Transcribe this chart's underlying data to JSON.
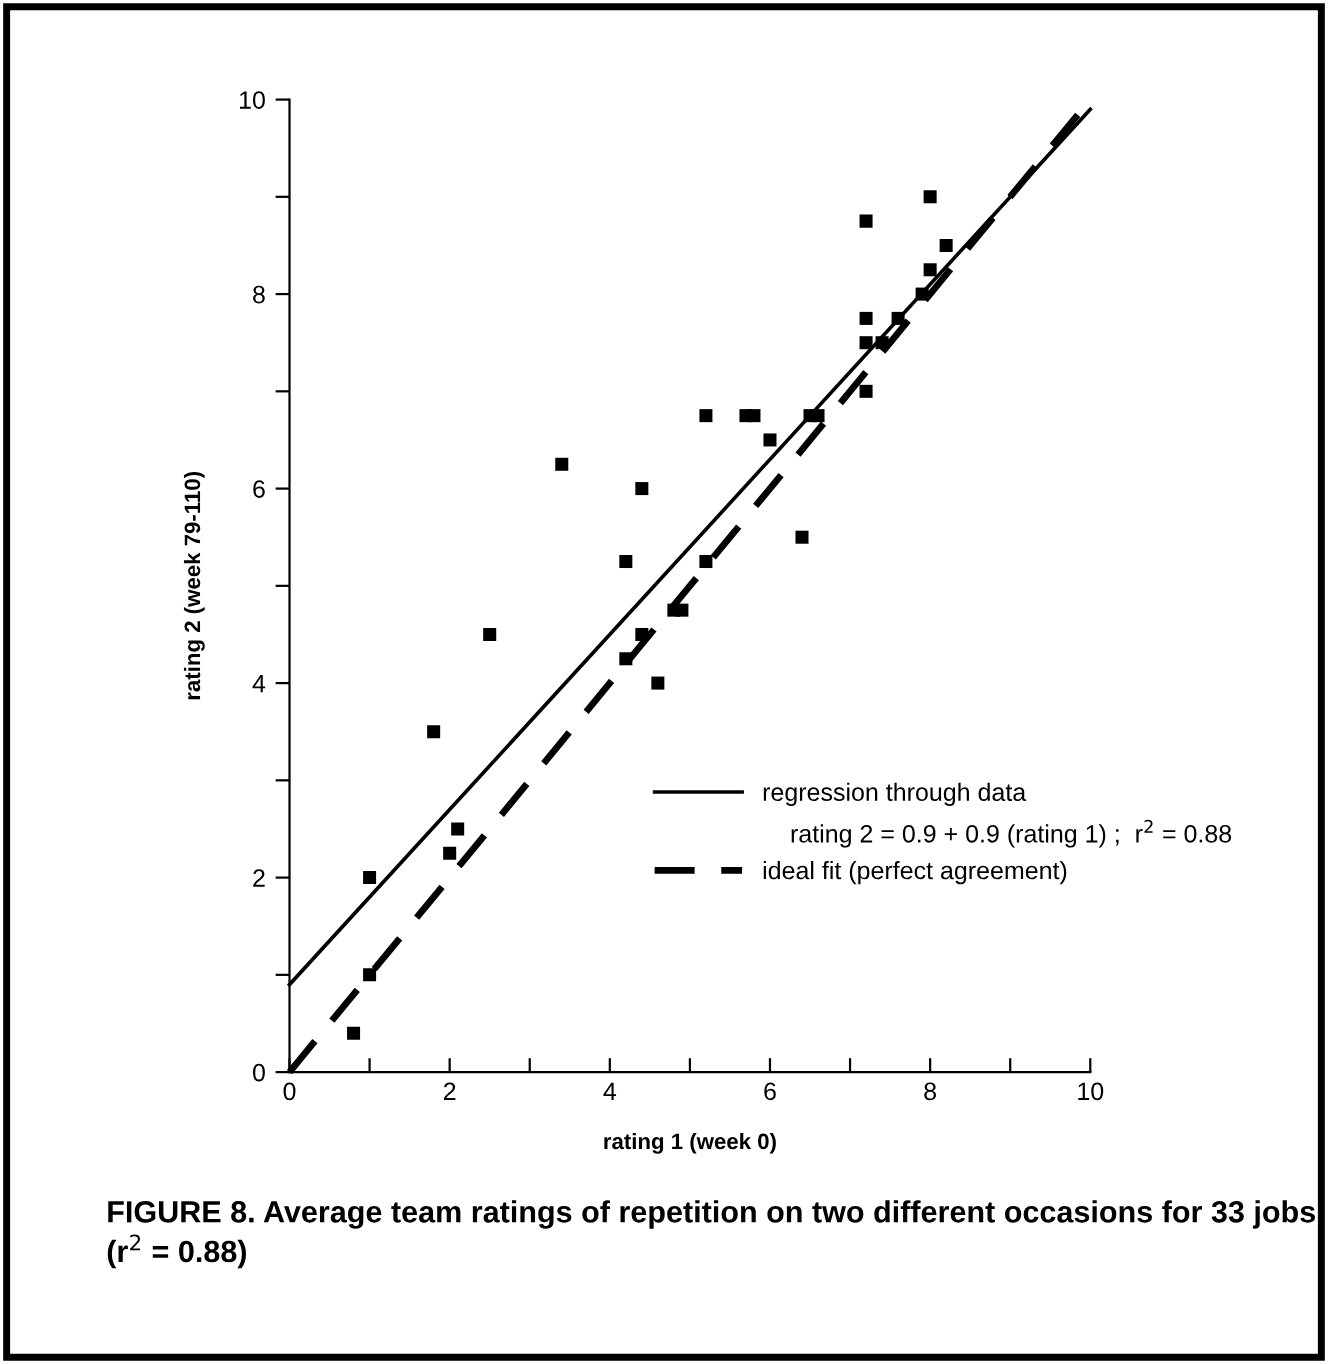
{
  "chart_data": {
    "type": "scatter",
    "xlabel": "rating 1 (week 0)",
    "ylabel": "rating 2 (week 79-110)",
    "series": [
      {
        "color": "#000000",
        "marker": "square",
        "x": [
          0.8,
          1.0,
          1.0,
          2.0,
          2.1,
          1.8,
          2.5,
          3.4,
          4.2,
          4.2,
          4.4,
          4.4,
          4.6,
          4.8,
          4.9,
          5.2,
          5.2,
          5.7,
          5.8,
          6.0,
          6.4,
          6.5,
          6.6,
          7.2,
          7.2,
          7.2,
          7.2,
          7.4,
          7.6,
          7.9,
          8.0,
          8.0,
          8.2
        ],
        "values": [
          0.4,
          1.0,
          2.0,
          2.25,
          2.5,
          3.5,
          4.5,
          6.25,
          5.25,
          4.25,
          6.0,
          4.5,
          4.0,
          4.75,
          4.75,
          6.75,
          5.25,
          6.75,
          6.75,
          6.5,
          5.5,
          6.75,
          6.75,
          8.75,
          7.75,
          7.5,
          7.0,
          7.5,
          7.75,
          8.0,
          9.0,
          8.25,
          8.5
        ]
      },
      {
        "type": "line",
        "name": "regression through data",
        "color": "#000000",
        "line_style": "solid",
        "x": [
          0,
          10
        ],
        "values": [
          0.9,
          9.9
        ]
      },
      {
        "type": "line",
        "name": "ideal fit (perfect agreement)",
        "color": "#000000",
        "line_style": "dashed",
        "x": [
          0,
          10
        ],
        "values": [
          0,
          10
        ]
      }
    ],
    "xlim": [
      0,
      10
    ],
    "ylim": [
      0,
      10
    ],
    "xticks": [
      0,
      {
        "value": 1,
        "label": null
      },
      2,
      {
        "value": 3,
        "label": null
      },
      4,
      {
        "value": 5,
        "label": null
      },
      6,
      {
        "value": 7,
        "label": null
      },
      8,
      {
        "value": 9,
        "label": null
      },
      10
    ],
    "yticks": [
      0,
      {
        "value": 1,
        "label": null
      },
      2,
      {
        "value": 3,
        "label": null
      },
      4,
      {
        "value": 5,
        "label": null
      },
      6,
      {
        "value": 7,
        "label": null
      },
      8,
      {
        "value": 9,
        "label": null
      },
      10
    ],
    "grid": false,
    "legend": "bottom right",
    "annotations": [
      "rating 2 = 0.9 + 0.9 (rating 1) ;  r$^{2}$ = 0.88",
      "FIGURE 8. Average team ratings of repetition on two different occasions for 33 jobs (r$^{2}$ = 0.88)"
    ]
  }
}
